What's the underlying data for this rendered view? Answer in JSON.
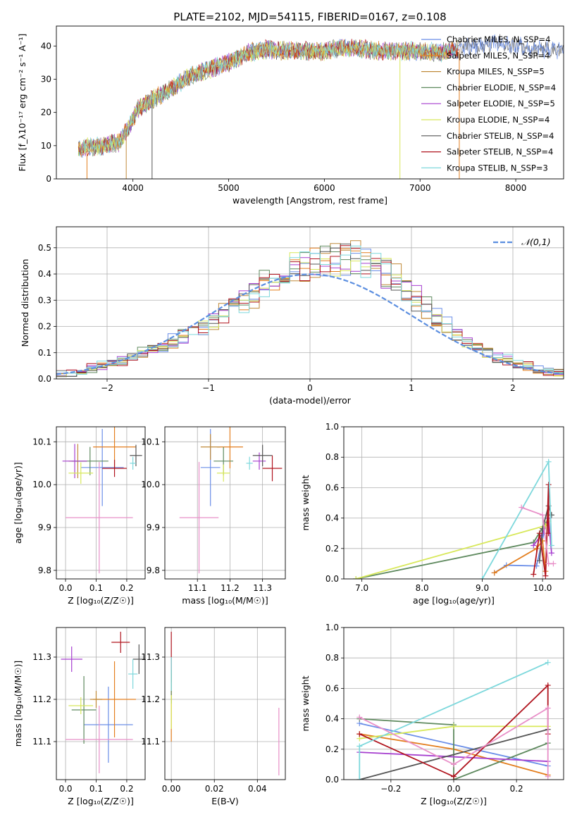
{
  "colors": {
    "Chabrier MILES": "#6a8ee8",
    "Salpeter MILES": "#e37e1e",
    "Kroupa MILES": "#c08a3a",
    "Chabrier ELODIE": "#5f8a5f",
    "Salpeter ELODIE": "#a63fcf",
    "Kroupa ELODIE": "#d8e85a",
    "Chabrier STELIB": "#555555",
    "Salpeter STELIB": "#b0141e",
    "Kroupa STELIB": "#7dd8dc",
    "pink": "#e88fc8",
    "normal_curve": "#5b8ee0"
  },
  "chart_data": [
    {
      "type": "line",
      "title": "PLATE=2102, MJD=54115, FIBERID=0167, z=0.108",
      "xlabel": "wavelength [Angstrom, rest frame]",
      "ylabel": "Flux [f_λ10⁻¹⁷ erg cm⁻² s⁻¹ A⁻¹]",
      "xlim": [
        3200,
        8500
      ],
      "ylim": [
        0,
        46
      ],
      "xticks": [
        4000,
        5000,
        6000,
        7000,
        8000
      ],
      "yticks": [
        0,
        10,
        20,
        30,
        40
      ],
      "legend_position": "top-right",
      "legend": [
        "Chabrier MILES, N_SSP=4",
        "Salpeter MILES, N_SSP=4",
        "Kroupa MILES, N_SSP=5",
        "Chabrier ELODIE, N_SSP=4",
        "Salpeter ELODIE, N_SSP=5",
        "Kroupa ELODIE, N_SSP=4",
        "Chabrier STELIB, N_SSP=4",
        "Salpeter STELIB, N_SSP=4",
        "Kroupa STELIB, N_SSP=3"
      ],
      "continuum_x": [
        3430,
        3550,
        3700,
        3850,
        3950,
        4050,
        4200,
        4400,
        4600,
        4800,
        5000,
        5200,
        5400,
        5600,
        5800,
        6000,
        6200,
        6400,
        6600,
        6800,
        7000,
        7200,
        7400,
        7600,
        7800,
        8000,
        8200
      ],
      "continuum_y": [
        9,
        9.5,
        10,
        11,
        15,
        21,
        24,
        27,
        31,
        33,
        35,
        38,
        39,
        38.5,
        38.5,
        38.5,
        39.5,
        39,
        38.5,
        38.5,
        38.5,
        38,
        39,
        40,
        41,
        40,
        39
      ],
      "series_ends": [
        8500,
        7400,
        7400,
        7350,
        7350,
        7300,
        8500,
        7400,
        7400
      ]
    },
    {
      "type": "bar",
      "xlabel": "(data-model)/error",
      "ylabel": "Normed distribution",
      "xlim": [
        -2.5,
        2.5
      ],
      "ylim": [
        0,
        0.58
      ],
      "xticks": [
        -2,
        -1,
        0,
        1,
        2
      ],
      "yticks": [
        0.0,
        0.1,
        0.2,
        0.3,
        0.4,
        0.5
      ],
      "legend": [
        "𝒩(0,1)"
      ],
      "legend_position": "top-right",
      "bin_edges_start": -2.5,
      "bin_width": 0.1,
      "base_shape": [
        0.02,
        0.02,
        0.03,
        0.04,
        0.05,
        0.06,
        0.07,
        0.08,
        0.1,
        0.11,
        0.13,
        0.14,
        0.16,
        0.18,
        0.2,
        0.22,
        0.25,
        0.29,
        0.3,
        0.33,
        0.36,
        0.39,
        0.41,
        0.42,
        0.43,
        0.44,
        0.45,
        0.46,
        0.46,
        0.45,
        0.44,
        0.42,
        0.4,
        0.37,
        0.34,
        0.3,
        0.27,
        0.23,
        0.2,
        0.17,
        0.14,
        0.12,
        0.1,
        0.08,
        0.07,
        0.06,
        0.05,
        0.04,
        0.03,
        0.02
      ]
    },
    {
      "type": "scatter",
      "xlabel": "Z [log₁₀(Z/Z☉)]",
      "ylabel": "age  [log₁₀(age/yr)]",
      "xlim": [
        -0.03,
        0.26
      ],
      "ylim": [
        9.78,
        10.135
      ],
      "xticks": [
        0.0,
        0.1,
        0.2
      ],
      "yticks": [
        9.8,
        9.9,
        10.0,
        10.1
      ],
      "points": [
        {
          "key": "Chabrier MILES",
          "x": 0.12,
          "y": 10.04,
          "xerr": 0.07,
          "yerr": 0.09
        },
        {
          "key": "Salpeter MILES",
          "x": 0.16,
          "y": 10.088,
          "xerr": 0.07,
          "yerr": 0.05
        },
        {
          "key": "Kroupa MILES",
          "x": 0.04,
          "y": 10.055,
          "xerr": 0.03,
          "yerr": 0.04
        },
        {
          "key": "Chabrier ELODIE",
          "x": 0.08,
          "y": 10.055,
          "xerr": 0.06,
          "yerr": 0.033
        },
        {
          "key": "Salpeter ELODIE",
          "x": 0.03,
          "y": 10.055,
          "xerr": 0.04,
          "yerr": 0.04
        },
        {
          "key": "Kroupa ELODIE",
          "x": 0.05,
          "y": 10.027,
          "xerr": 0.04,
          "yerr": 0.025
        },
        {
          "key": "Chabrier STELIB",
          "x": 0.23,
          "y": 10.068,
          "xerr": 0.02,
          "yerr": 0.025
        },
        {
          "key": "Salpeter STELIB",
          "x": 0.16,
          "y": 10.038,
          "xerr": 0.04,
          "yerr": 0.02
        },
        {
          "key": "Kroupa STELIB",
          "x": 0.22,
          "y": 10.05,
          "xerr": 0.01,
          "yerr": 0.015
        },
        {
          "key": "pink",
          "x": 0.11,
          "y": 9.923,
          "xerr": 0.11,
          "yerr": 0.13
        }
      ]
    },
    {
      "type": "scatter",
      "xlabel": "mass [log₁₀(M/M☉)]",
      "ylabel": "",
      "xlim": [
        11.0,
        11.37
      ],
      "ylim": [
        9.78,
        10.135
      ],
      "xticks": [
        11.1,
        11.2,
        11.3
      ],
      "yticks": [
        9.8,
        9.9,
        10.0,
        10.1
      ],
      "points": [
        {
          "key": "Chabrier MILES",
          "x": 11.14,
          "y": 10.04,
          "xerr": 0.03,
          "yerr": 0.09
        },
        {
          "key": "Salpeter MILES",
          "x": 11.2,
          "y": 10.088,
          "xerr": 0.04,
          "yerr": 0.05
        },
        {
          "key": "Kroupa MILES",
          "x": 11.14,
          "y": 10.088,
          "xerr": 0.03,
          "yerr": 0.03
        },
        {
          "key": "Chabrier ELODIE",
          "x": 11.18,
          "y": 10.055,
          "xerr": 0.03,
          "yerr": 0.033
        },
        {
          "key": "Salpeter ELODIE",
          "x": 11.29,
          "y": 10.055,
          "xerr": 0.02,
          "yerr": 0.02
        },
        {
          "key": "Kroupa ELODIE",
          "x": 11.18,
          "y": 10.027,
          "xerr": 0.02,
          "yerr": 0.02
        },
        {
          "key": "Chabrier STELIB",
          "x": 11.3,
          "y": 10.068,
          "xerr": 0.03,
          "yerr": 0.025
        },
        {
          "key": "Salpeter STELIB",
          "x": 11.33,
          "y": 10.038,
          "xerr": 0.03,
          "yerr": 0.03
        },
        {
          "key": "Kroupa STELIB",
          "x": 11.26,
          "y": 10.05,
          "xerr": 0.01,
          "yerr": 0.015
        },
        {
          "key": "pink",
          "x": 11.105,
          "y": 9.923,
          "xerr": 0.06,
          "yerr": 0.13
        }
      ]
    },
    {
      "type": "line",
      "xlabel": "age  [log₁₀(age/yr)]",
      "ylabel": "mass weight",
      "xlim": [
        6.7,
        10.35
      ],
      "ylim": [
        0,
        1.0
      ],
      "xticks": [
        7,
        8,
        9,
        10
      ],
      "yticks": [
        0.0,
        0.2,
        0.4,
        0.6,
        0.8,
        1.0
      ],
      "series": [
        {
          "key": "Chabrier MILES",
          "x": [
            9.2,
            9.4,
            9.9,
            10.05,
            10.1
          ],
          "y": [
            0.04,
            0.09,
            0.085,
            0.35,
            0.4
          ]
        },
        {
          "key": "Salpeter MILES",
          "x": [
            9.2,
            9.9,
            10.0,
            10.05
          ],
          "y": [
            0.04,
            0.2,
            0.25,
            0.05
          ]
        },
        {
          "key": "Chabrier ELODIE",
          "x": [
            6.9,
            9.85,
            10.1
          ],
          "y": [
            0.0,
            0.24,
            0.4
          ]
        },
        {
          "key": "Salpeter ELODIE",
          "x": [
            9.85,
            10.0,
            10.1,
            10.15
          ],
          "y": [
            0.22,
            0.3,
            0.4,
            0.17
          ]
        },
        {
          "key": "Kroupa ELODIE",
          "x": [
            6.9,
            10.05,
            10.1
          ],
          "y": [
            0.0,
            0.35,
            0.38
          ]
        },
        {
          "key": "Chabrier STELIB",
          "x": [
            9.95,
            10.0,
            10.1,
            10.15
          ],
          "y": [
            0.12,
            0.33,
            0.48,
            0.42
          ]
        },
        {
          "key": "Salpeter STELIB",
          "x": [
            9.85,
            9.95,
            10.05,
            10.1,
            10.1
          ],
          "y": [
            0.03,
            0.3,
            0.02,
            0.62,
            0.3
          ]
        },
        {
          "key": "Kroupa STELIB",
          "x": [
            9.0,
            10.1,
            10.15
          ],
          "y": [
            0.0,
            0.77,
            0.22
          ]
        },
        {
          "key": "pink",
          "x": [
            9.65,
            10.0,
            10.1,
            10.18
          ],
          "y": [
            0.47,
            0.42,
            0.1,
            0.1
          ]
        }
      ]
    },
    {
      "type": "scatter",
      "xlabel": "Z [log₁₀(Z/Z☉)]",
      "ylabel": "mass [log₁₀(M/M☉)]",
      "xlim": [
        -0.03,
        0.26
      ],
      "ylim": [
        11.01,
        11.37
      ],
      "xticks": [
        0.0,
        0.1,
        0.2
      ],
      "yticks": [
        11.1,
        11.2,
        11.3
      ],
      "points": [
        {
          "key": "Chabrier MILES",
          "x": 0.14,
          "y": 11.14,
          "xerr": 0.08,
          "yerr": 0.09
        },
        {
          "key": "Salpeter MILES",
          "x": 0.16,
          "y": 11.2,
          "xerr": 0.07,
          "yerr": 0.09
        },
        {
          "key": "Kroupa MILES",
          "x": 0.1,
          "y": 11.2,
          "xerr": 0.02,
          "yerr": 0.02
        },
        {
          "key": "Chabrier ELODIE",
          "x": 0.06,
          "y": 11.175,
          "xerr": 0.04,
          "yerr": 0.08
        },
        {
          "key": "Salpeter ELODIE",
          "x": 0.02,
          "y": 11.295,
          "xerr": 0.035,
          "yerr": 0.03
        },
        {
          "key": "Kroupa ELODIE",
          "x": 0.05,
          "y": 11.185,
          "xerr": 0.04,
          "yerr": 0.02
        },
        {
          "key": "Chabrier STELIB",
          "x": 0.24,
          "y": 11.295,
          "xerr": 0.02,
          "yerr": 0.035
        },
        {
          "key": "Salpeter STELIB",
          "x": 0.18,
          "y": 11.335,
          "xerr": 0.03,
          "yerr": 0.025
        },
        {
          "key": "Kroupa STELIB",
          "x": 0.22,
          "y": 11.26,
          "xerr": 0.015,
          "yerr": 0.035
        },
        {
          "key": "pink",
          "x": 0.11,
          "y": 11.105,
          "xerr": 0.11,
          "yerr": 0.08
        }
      ]
    },
    {
      "type": "scatter",
      "xlabel": "E(B-V)",
      "ylabel": "",
      "xlim": [
        -0.003,
        0.053
      ],
      "ylim": [
        11.01,
        11.37
      ],
      "xticks": [
        0.0,
        0.02,
        0.04
      ],
      "yticks": [
        11.1,
        11.2,
        11.3
      ],
      "points": [
        {
          "key": "Salpeter STELIB",
          "x": 0.0,
          "y": 11.3,
          "xerr": 0,
          "yerr": 0.06
        },
        {
          "key": "Salpeter MILES",
          "x": 0.0,
          "y": 11.18,
          "xerr": 0,
          "yerr": 0.08
        },
        {
          "key": "Chabrier ELODIE",
          "x": 0.0,
          "y": 11.23,
          "xerr": 0,
          "yerr": 0.04
        },
        {
          "key": "Kroupa ELODIE",
          "x": 0.0,
          "y": 11.17,
          "xerr": 0,
          "yerr": 0.04
        },
        {
          "key": "Kroupa STELIB",
          "x": 0.0,
          "y": 11.26,
          "xerr": 0,
          "yerr": 0.04
        },
        {
          "key": "pink",
          "x": 0.05,
          "y": 11.1,
          "xerr": 0,
          "yerr": 0.08
        }
      ]
    },
    {
      "type": "line",
      "xlabel": "Z [log₁₀(Z/Z☉)]",
      "ylabel": "mass weight",
      "xlim": [
        -0.35,
        0.35
      ],
      "ylim": [
        0,
        1.0
      ],
      "xticks": [
        -0.2,
        0.0,
        0.2
      ],
      "yticks": [
        0.0,
        0.2,
        0.4,
        0.6,
        0.8,
        1.0
      ],
      "series": [
        {
          "key": "Chabrier MILES",
          "x": [
            -0.3,
            0.3
          ],
          "y": [
            0.37,
            0.09
          ]
        },
        {
          "key": "Salpeter MILES",
          "x": [
            -0.3,
            0.0,
            0.3
          ],
          "y": [
            0.3,
            0.2,
            0.03
          ]
        },
        {
          "key": "Chabrier ELODIE",
          "x": [
            -0.3,
            0.0,
            0.0,
            0.3
          ],
          "y": [
            0.4,
            0.36,
            0.0,
            0.24
          ]
        },
        {
          "key": "Salpeter ELODIE",
          "x": [
            -0.3,
            0.3
          ],
          "y": [
            0.18,
            0.12
          ]
        },
        {
          "key": "Kroupa ELODIE",
          "x": [
            -0.3,
            0.0,
            0.3
          ],
          "y": [
            0.27,
            0.35,
            0.35
          ]
        },
        {
          "key": "Chabrier STELIB",
          "x": [
            -0.3,
            0.3
          ],
          "y": [
            0.0,
            0.33
          ]
        },
        {
          "key": "Salpeter STELIB",
          "x": [
            -0.3,
            0.0,
            0.3,
            0.3
          ],
          "y": [
            0.3,
            0.02,
            0.62,
            0.3
          ]
        },
        {
          "key": "Kroupa STELIB",
          "x": [
            -0.3,
            -0.3,
            0.3
          ],
          "y": [
            0.0,
            0.22,
            0.77
          ]
        },
        {
          "key": "pink",
          "x": [
            -0.3,
            0.0,
            0.3,
            0.3
          ],
          "y": [
            0.41,
            0.1,
            0.47,
            0.02
          ]
        }
      ]
    }
  ]
}
